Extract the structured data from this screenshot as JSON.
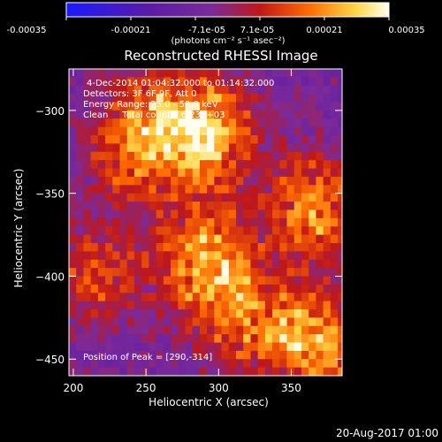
{
  "colorbar": {
    "ticks": [
      "-0.00035",
      "-0.00021",
      "-7.1e-05",
      "7.1e-05",
      "0.00021",
      "0.00035"
    ],
    "unit_label": "(photons cm⁻² s⁻¹ asec⁻²)",
    "range": [
      -0.00035,
      0.00035
    ],
    "colors": [
      "#1a1aff",
      "#5a1aa8",
      "#7a2a9a",
      "#c01818",
      "#ff6a00",
      "#ffd84a",
      "#fffff0"
    ]
  },
  "chart_data": {
    "type": "heatmap",
    "title": "Reconstructed RHESSI Image",
    "xlabel": "Heliocentric X (arcsec)",
    "ylabel": "Heliocentric Y (arcsec)",
    "xlim": [
      197,
      385
    ],
    "ylim": [
      -460,
      -275
    ],
    "x_ticks": [
      200,
      250,
      300,
      350
    ],
    "y_ticks": [
      -300,
      -350,
      -400,
      -450
    ],
    "info_lines": [
      "4-Dec-2014 01:04:32.000 to 01:14:32.000",
      "Detectors: 3F 6F 9F, Att 0",
      "Energy Range: 25.0 - 50.0 keV",
      "Clean     Total counts: 6.23E+03"
    ],
    "peak_label": "Position of Peak = [290,-314]",
    "peak": [
      290,
      -314
    ],
    "bright_regions": [
      {
        "x": 293,
        "y": -315,
        "intensity": 0.00035
      },
      {
        "x": 255,
        "y": -305,
        "intensity": 0.00021
      },
      {
        "x": 365,
        "y": -360,
        "intensity": 0.00028
      },
      {
        "x": 290,
        "y": -390,
        "intensity": 0.0003
      },
      {
        "x": 215,
        "y": -400,
        "intensity": 0.00018
      },
      {
        "x": 365,
        "y": -440,
        "intensity": 0.00033
      },
      {
        "x": 315,
        "y": -425,
        "intensity": 0.00022
      },
      {
        "x": 240,
        "y": -330,
        "intensity": 0.00016
      }
    ]
  },
  "footer": {
    "timestamp": "20-Aug-2017 01:00"
  }
}
